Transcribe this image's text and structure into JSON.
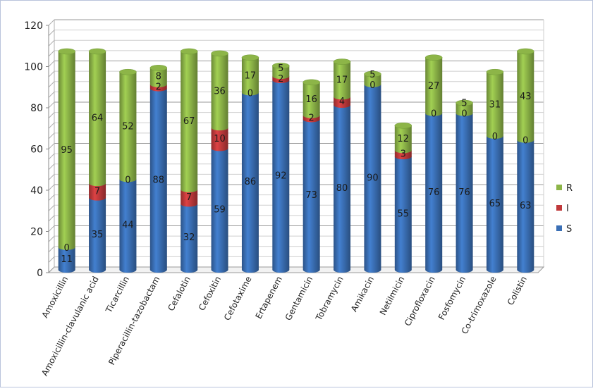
{
  "chart_data": {
    "type": "bar",
    "stacked": true,
    "style": "3d-cylinder",
    "title": "",
    "xlabel": "",
    "ylabel": "",
    "ylim": [
      0,
      120
    ],
    "yticks": [
      0,
      20,
      40,
      60,
      80,
      100,
      120
    ],
    "grid": true,
    "legend_position": "right",
    "categories": [
      "Amoxicillin",
      "Amoxicillin-clavulanic acid",
      "Ticarcillin",
      "Piperacillin-tazobactam",
      "Cefalotin",
      "Cefoxitin",
      "Cefotaxime",
      "Ertapenem",
      "Gentamicin",
      "Tobramycin",
      "Amikacin",
      "Netilmicin",
      "Ciprofloxacin",
      "Fosfomycin",
      "Co-trimoxazole",
      "Colistin"
    ],
    "series": [
      {
        "name": "S",
        "color": "#3a6fb5",
        "values": [
          11,
          35,
          44,
          88,
          32,
          59,
          86,
          92,
          73,
          80,
          90,
          55,
          76,
          76,
          65,
          63
        ]
      },
      {
        "name": "I",
        "color": "#c0393b",
        "values": [
          0,
          7,
          0,
          2,
          7,
          10,
          0,
          2,
          2,
          4,
          0,
          3,
          0,
          0,
          0,
          0
        ]
      },
      {
        "name": "R",
        "color": "#8db548",
        "values": [
          95,
          64,
          52,
          8,
          67,
          36,
          17,
          5,
          16,
          17,
          5,
          12,
          27,
          5,
          31,
          43
        ]
      }
    ]
  }
}
